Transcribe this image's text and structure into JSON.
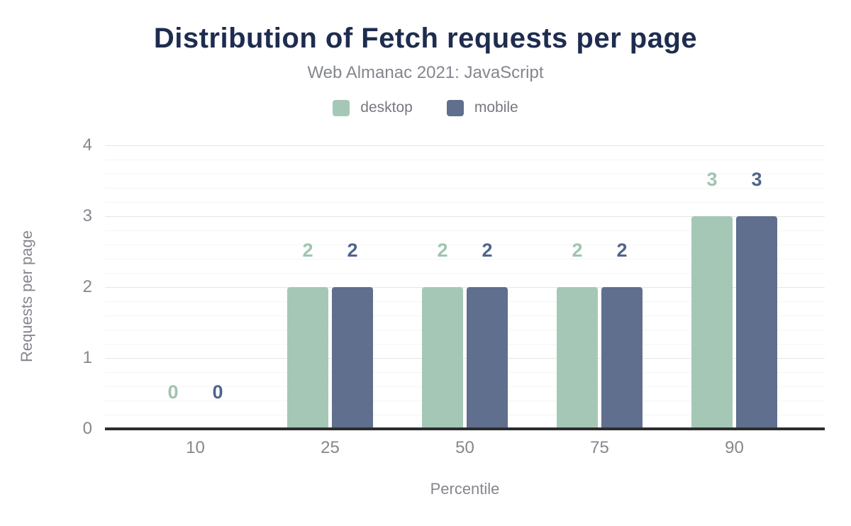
{
  "chart_data": {
    "type": "bar",
    "title": "Distribution of Fetch requests per page",
    "subtitle": "Web Almanac 2021: JavaScript",
    "categories": [
      "10",
      "25",
      "50",
      "75",
      "90"
    ],
    "series": [
      {
        "name": "desktop",
        "color": "#a5c8b6",
        "label_color": "#9fc4b0",
        "values": [
          0,
          2,
          2,
          2,
          3
        ]
      },
      {
        "name": "mobile",
        "color": "#5f6f8d",
        "label_color": "#50658a",
        "values": [
          0,
          2,
          2,
          2,
          3
        ]
      }
    ],
    "xlabel": "Percentile",
    "ylabel": "Requests per page",
    "ylim": [
      0,
      4
    ],
    "yticks": [
      0,
      1,
      2,
      3,
      4
    ],
    "minor_grid_step": 0.2,
    "grid": "horizontal",
    "legend_position": "top"
  },
  "colors": {
    "title": "#1e2c4f",
    "subtitle": "#84868e",
    "axis_text": "#85878d",
    "axis_line": "#2d2d2d",
    "grid_major": "#e5e5e7",
    "grid_minor": "#f5f5f6",
    "background": "#ffffff"
  }
}
